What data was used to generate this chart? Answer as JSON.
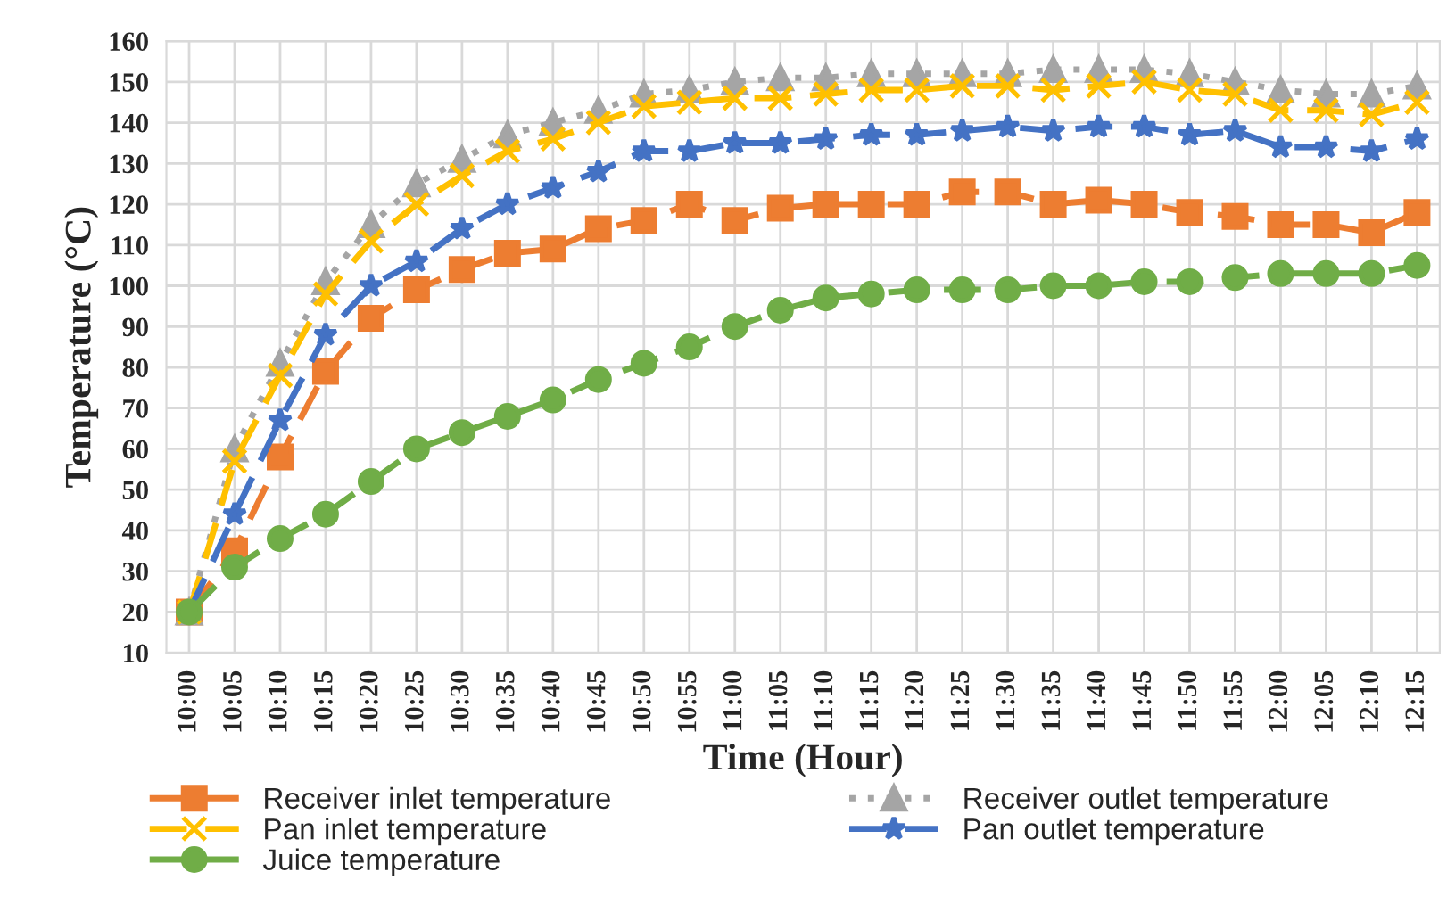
{
  "chart_data": {
    "type": "line",
    "xlabel": "Time (Hour)",
    "ylabel": "Temperature (°C)",
    "categories": [
      "10:00",
      "10:05",
      "10:10",
      "10:15",
      "10:20",
      "10:25",
      "10:30",
      "10:35",
      "10:40",
      "10:45",
      "10:50",
      "10:55",
      "11:00",
      "11:05",
      "11:10",
      "11:15",
      "11:20",
      "11:25",
      "11:30",
      "11:35",
      "11:40",
      "11:45",
      "11:50",
      "11:55",
      "12:00",
      "12:05",
      "12:10",
      "12:15"
    ],
    "series": [
      {
        "name": "Receiver inlet temperature",
        "color": "#ed7d31",
        "marker": "square",
        "line_style": "dashed",
        "values": [
          20,
          35,
          58,
          79,
          92,
          99,
          104,
          108,
          109,
          114,
          116,
          120,
          116,
          119,
          120,
          120,
          120,
          123,
          123,
          120,
          121,
          120,
          118,
          117,
          115,
          115,
          113,
          118
        ]
      },
      {
        "name": "Receiver outlet temperature",
        "color": "#a5a5a5",
        "marker": "triangle",
        "line_style": "dotted",
        "values": [
          20,
          60,
          81,
          101,
          115,
          125,
          131,
          137,
          140,
          143,
          147,
          148,
          150,
          151,
          151,
          152,
          152,
          152,
          152,
          153,
          153,
          153,
          152,
          150,
          148,
          147,
          147,
          149
        ]
      },
      {
        "name": "Pan inlet temperature",
        "color": "#ffc000",
        "marker": "cross",
        "line_style": "dashed",
        "values": [
          20,
          57,
          78,
          98,
          111,
          120,
          127,
          133,
          136,
          140,
          144,
          145,
          146,
          146,
          147,
          148,
          148,
          149,
          149,
          148,
          149,
          150,
          148,
          147,
          143,
          143,
          142,
          145
        ]
      },
      {
        "name": "Pan outlet temperature",
        "color": "#4472c4",
        "marker": "star",
        "line_style": "dashed",
        "values": [
          20,
          44,
          67,
          88,
          100,
          106,
          114,
          120,
          124,
          128,
          133,
          133,
          135,
          135,
          136,
          137,
          137,
          138,
          139,
          138,
          139,
          139,
          137,
          138,
          134,
          134,
          133,
          136
        ]
      },
      {
        "name": "Juice temperature",
        "color": "#70ad47",
        "marker": "circle",
        "line_style": "dashed",
        "values": [
          20,
          31,
          38,
          44,
          52,
          60,
          64,
          68,
          72,
          77,
          81,
          85,
          90,
          94,
          97,
          98,
          99,
          99,
          99,
          100,
          100,
          101,
          101,
          102,
          103,
          103,
          103,
          105
        ]
      }
    ],
    "ylim": [
      10,
      160
    ],
    "yticks": [
      10,
      20,
      30,
      40,
      50,
      60,
      70,
      80,
      90,
      100,
      110,
      120,
      130,
      140,
      150,
      160
    ],
    "grid": true,
    "legend": "bottom"
  }
}
